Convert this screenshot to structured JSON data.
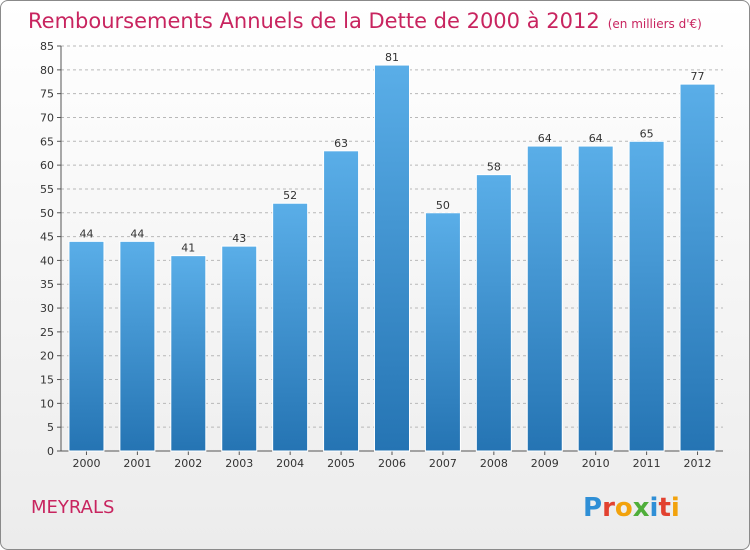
{
  "title": "Remboursements Annuels de la Dette de 2000 à 2012",
  "unit": "(en milliers d'€)",
  "place": "MEYRALS",
  "brand": "Proxiti",
  "colors": {
    "title": "#c8245f",
    "bar_top": "#5aaee8",
    "bar_bottom": "#2574b3",
    "grid": "#b8b8b8"
  },
  "chart_data": {
    "type": "bar",
    "categories": [
      "2000",
      "2001",
      "2002",
      "2003",
      "2004",
      "2005",
      "2006",
      "2007",
      "2008",
      "2009",
      "2010",
      "2011",
      "2012"
    ],
    "values": [
      44,
      44,
      41,
      43,
      52,
      63,
      81,
      50,
      58,
      64,
      64,
      65,
      77
    ],
    "ylim": [
      0,
      85
    ],
    "yticks": [
      0,
      5,
      10,
      15,
      20,
      25,
      30,
      35,
      40,
      45,
      50,
      55,
      60,
      65,
      70,
      75,
      80,
      85
    ],
    "grid": true,
    "xlabel": "",
    "ylabel": ""
  }
}
